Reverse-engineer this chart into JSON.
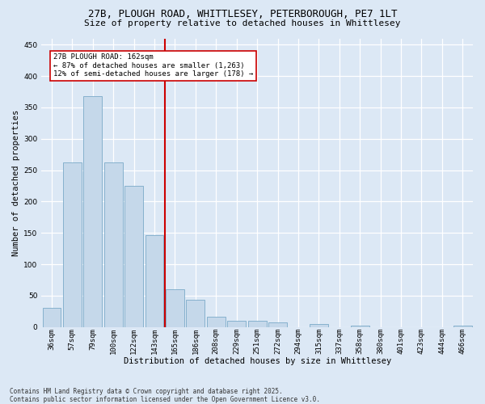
{
  "title1": "27B, PLOUGH ROAD, WHITTLESEY, PETERBOROUGH, PE7 1LT",
  "title2": "Size of property relative to detached houses in Whittlesey",
  "xlabel": "Distribution of detached houses by size in Whittlesey",
  "ylabel": "Number of detached properties",
  "categories": [
    "36sqm",
    "57sqm",
    "79sqm",
    "100sqm",
    "122sqm",
    "143sqm",
    "165sqm",
    "186sqm",
    "208sqm",
    "229sqm",
    "251sqm",
    "272sqm",
    "294sqm",
    "315sqm",
    "337sqm",
    "358sqm",
    "380sqm",
    "401sqm",
    "423sqm",
    "444sqm",
    "466sqm"
  ],
  "values": [
    30,
    262,
    368,
    262,
    225,
    147,
    60,
    44,
    16,
    10,
    10,
    7,
    0,
    5,
    0,
    2,
    0,
    0,
    0,
    0,
    2
  ],
  "bar_color": "#c5d8ea",
  "bar_edge_color": "#7aaac8",
  "vline_color": "#cc0000",
  "annotation_line1": "27B PLOUGH ROAD: 162sqm",
  "annotation_line2": "← 87% of detached houses are smaller (1,263)",
  "annotation_line3": "12% of semi-detached houses are larger (178) →",
  "annotation_box_color": "#ffffff",
  "annotation_box_edge": "#cc0000",
  "ylim": [
    0,
    460
  ],
  "yticks": [
    0,
    50,
    100,
    150,
    200,
    250,
    300,
    350,
    400,
    450
  ],
  "footer": "Contains HM Land Registry data © Crown copyright and database right 2025.\nContains public sector information licensed under the Open Government Licence v3.0.",
  "bg_color": "#dce8f5",
  "title_fontsize": 9,
  "subtitle_fontsize": 8,
  "label_fontsize": 7.5,
  "tick_fontsize": 6.5,
  "footer_fontsize": 5.5,
  "annot_fontsize": 6.5
}
